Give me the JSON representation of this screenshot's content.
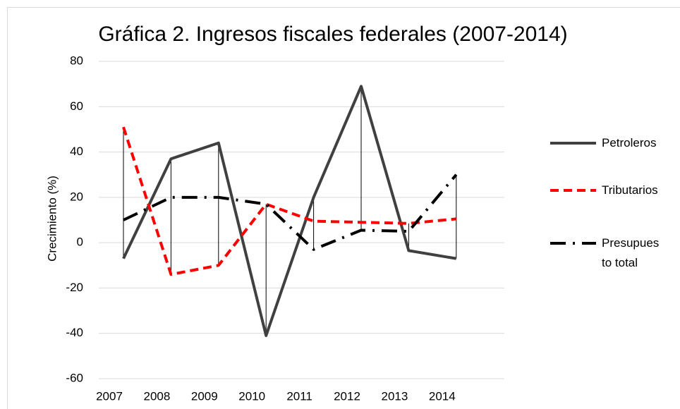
{
  "chart_data": {
    "type": "line",
    "title": "Gráfica 2. Ingresos fiscales federales (2007-2014)",
    "y_label": "Crecimiento (%)",
    "categories": [
      "2007",
      "2008",
      "2009",
      "2010",
      "2011",
      "2012",
      "2013",
      "2014"
    ],
    "series": [
      {
        "name": "Petroleros",
        "color": "#404040",
        "dash": "solid",
        "values": [
          -7,
          37,
          44,
          -41,
          20,
          69,
          -3.5,
          -7
        ]
      },
      {
        "name": "Tributarios",
        "color": "#ff0000",
        "dash": "dash",
        "values": [
          51,
          -14,
          -10,
          17,
          9.5,
          9,
          8.5,
          10.5
        ]
      },
      {
        "name": "Presupues to total",
        "color": "#000000",
        "dash": "dashdot",
        "values": [
          10,
          20,
          20,
          17,
          -3,
          5.5,
          5,
          30
        ]
      }
    ],
    "ylim": [
      -60,
      80
    ],
    "yticks": [
      -60,
      -40,
      -20,
      0,
      20,
      40,
      60,
      80
    ],
    "grid": true,
    "legend": "right",
    "high_low_lines": true
  }
}
